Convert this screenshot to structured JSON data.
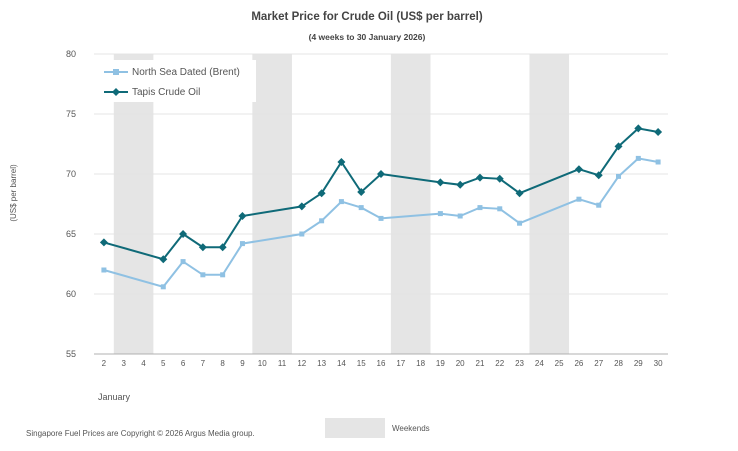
{
  "chart_data": {
    "type": "line",
    "title": "Market Price for Crude Oil (US$ per barrel)",
    "subtitle": "(4 weeks to 30 January 2026)",
    "ylabel": "(US$ per barrel)",
    "xlabel": "January",
    "ylim": [
      55,
      80
    ],
    "yticks": [
      55,
      60,
      65,
      70,
      75,
      80
    ],
    "x_categories": [
      "2",
      "3",
      "4",
      "5",
      "6",
      "7",
      "8",
      "9",
      "10",
      "11",
      "12",
      "13",
      "14",
      "15",
      "16",
      "17",
      "18",
      "19",
      "20",
      "21",
      "22",
      "23",
      "24",
      "25",
      "26",
      "27",
      "28",
      "29",
      "30"
    ],
    "weekend_ranges": [
      [
        "3",
        "4"
      ],
      [
        "10",
        "11"
      ],
      [
        "17",
        "18"
      ],
      [
        "24",
        "25"
      ]
    ],
    "weekend_label": "Weekends",
    "grid": true,
    "legend_position": "top-left",
    "series": [
      {
        "name": "North Sea Dated (Brent)",
        "color": "#8fc1e3",
        "marker": "square",
        "points": [
          [
            "2",
            62.0
          ],
          [
            "5",
            60.6
          ],
          [
            "6",
            62.7
          ],
          [
            "7",
            61.6
          ],
          [
            "8",
            61.6
          ],
          [
            "9",
            64.2
          ],
          [
            "12",
            65.0
          ],
          [
            "13",
            66.1
          ],
          [
            "14",
            67.7
          ],
          [
            "15",
            67.2
          ],
          [
            "16",
            66.3
          ],
          [
            "19",
            66.7
          ],
          [
            "20",
            66.5
          ],
          [
            "21",
            67.2
          ],
          [
            "22",
            67.1
          ],
          [
            "23",
            65.9
          ],
          [
            "26",
            67.9
          ],
          [
            "27",
            67.4
          ],
          [
            "28",
            69.8
          ],
          [
            "29",
            71.3
          ],
          [
            "30",
            71.0
          ]
        ]
      },
      {
        "name": "Tapis Crude Oil",
        "color": "#0f6a78",
        "marker": "diamond",
        "points": [
          [
            "2",
            64.3
          ],
          [
            "5",
            62.9
          ],
          [
            "6",
            65.0
          ],
          [
            "7",
            63.9
          ],
          [
            "8",
            63.9
          ],
          [
            "9",
            66.5
          ],
          [
            "12",
            67.3
          ],
          [
            "13",
            68.4
          ],
          [
            "14",
            71.0
          ],
          [
            "15",
            68.5
          ],
          [
            "16",
            70.0
          ],
          [
            "19",
            69.3
          ],
          [
            "20",
            69.1
          ],
          [
            "21",
            69.7
          ],
          [
            "22",
            69.6
          ],
          [
            "23",
            68.4
          ],
          [
            "26",
            70.4
          ],
          [
            "27",
            69.9
          ],
          [
            "28",
            72.3
          ],
          [
            "29",
            73.8
          ],
          [
            "30",
            73.5
          ]
        ]
      }
    ]
  },
  "footer": {
    "copyright": "Singapore  Fuel  Prices  are  Copyright  ©  2026  Argus  Media  group."
  },
  "colors": {
    "weekend_shade": "#e5e5e5",
    "grid": "#e4e4e4",
    "axis": "#b0b0b0"
  }
}
